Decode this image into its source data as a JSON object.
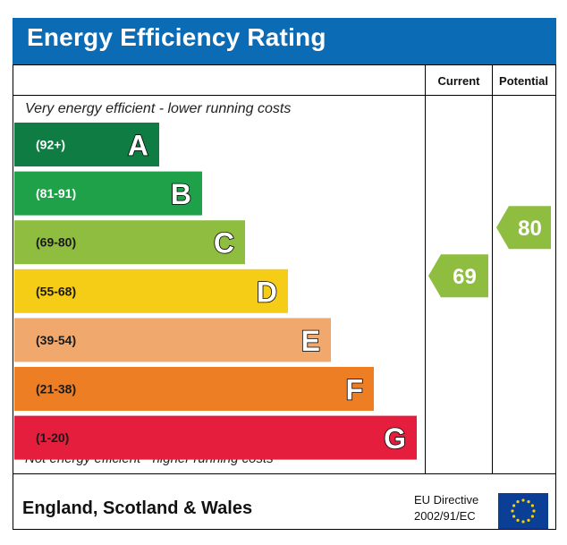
{
  "title": "Energy Efficiency Rating",
  "columns": {
    "current": "Current",
    "potential": "Potential"
  },
  "top_caption": "Very energy efficient - lower running costs",
  "bottom_caption": "Not energy efficient - higher running costs",
  "footer": {
    "region": "England, Scotland & Wales",
    "directive_line1": "EU Directive",
    "directive_line2": "2002/91/EC"
  },
  "chart_data": {
    "type": "bar",
    "title": "Energy Efficiency Rating",
    "bands": [
      {
        "letter": "A",
        "range": "(92+)",
        "min": 92,
        "max": 100,
        "color": "#0f7d43",
        "text_color": "#ffffff"
      },
      {
        "letter": "B",
        "range": "(81-91)",
        "min": 81,
        "max": 91,
        "color": "#1fa149",
        "text_color": "#ffffff"
      },
      {
        "letter": "C",
        "range": "(69-80)",
        "min": 69,
        "max": 80,
        "color": "#8ebd3f",
        "text_color": "#1a1a1a"
      },
      {
        "letter": "D",
        "range": "(55-68)",
        "min": 55,
        "max": 68,
        "color": "#f5cd17",
        "text_color": "#1a1a1a"
      },
      {
        "letter": "E",
        "range": "(39-54)",
        "min": 39,
        "max": 54,
        "color": "#f1a86c",
        "text_color": "#1a1a1a"
      },
      {
        "letter": "F",
        "range": "(21-38)",
        "min": 21,
        "max": 38,
        "color": "#ed7e24",
        "text_color": "#1a1a1a"
      },
      {
        "letter": "G",
        "range": "(1-20)",
        "min": 1,
        "max": 20,
        "color": "#e41e3c",
        "text_color": "#1a1a1a"
      }
    ],
    "current": {
      "value": 69,
      "band": "C",
      "color": "#8ebd3f"
    },
    "potential": {
      "value": 80,
      "band": "C",
      "color": "#8ebd3f"
    }
  }
}
